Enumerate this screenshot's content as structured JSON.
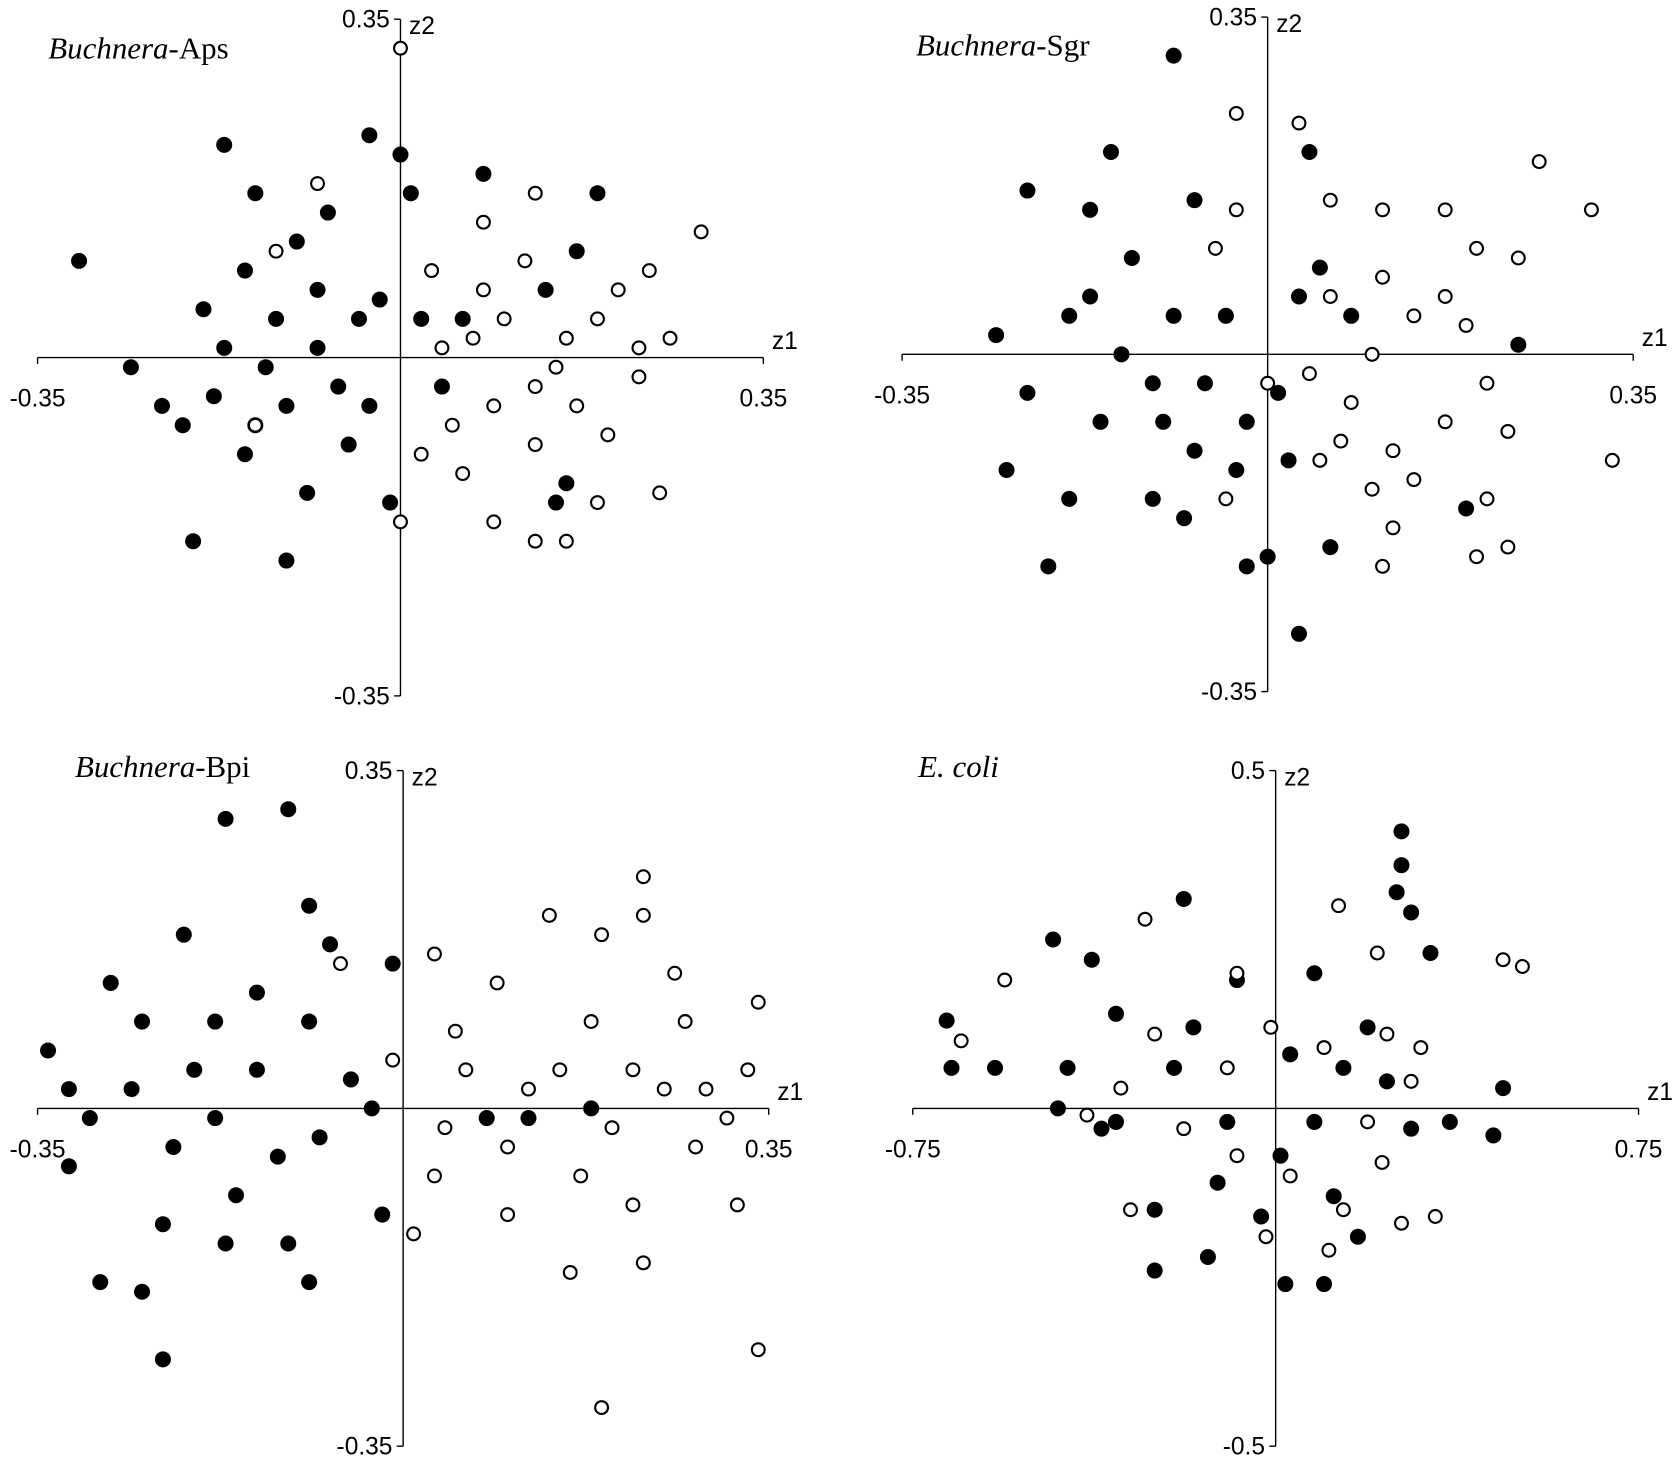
{
  "chart_data": [
    {
      "type": "scatter",
      "title": "Buchnera-Aps",
      "xlabel": "z1",
      "ylabel": "z2",
      "xlim": [
        -0.35,
        0.35
      ],
      "ylim": [
        -0.35,
        0.35
      ],
      "xticks": [
        -0.35,
        0.35
      ],
      "yticks": [
        -0.35,
        0.35
      ],
      "series": [
        {
          "color": "#000000",
          "marker": "filled",
          "x": [
            -0.31,
            -0.26,
            -0.23,
            -0.2,
            -0.17,
            -0.11,
            -0.03,
            0,
            0.08,
            0.19,
            0.17,
            0.16,
            0.15,
            -0.01,
            -0.09,
            -0.14,
            -0.18,
            -0.19,
            -0.15,
            -0.12,
            -0.08,
            -0.06,
            -0.04,
            -0.02,
            -0.1,
            -0.07,
            -0.14,
            -0.05,
            0.02,
            0.04,
            -0.03,
            -0.11,
            -0.17,
            -0.21,
            0.14,
            0.06,
            -0.08,
            -0.13,
            0.01,
            -0.15
          ],
          "values": [
            0.1,
            -0.01,
            -0.05,
            -0.19,
            0.22,
            -0.21,
            0.23,
            0.21,
            0.19,
            0.17,
            0.11,
            -0.13,
            -0.15,
            -0.15,
            -0.14,
            -0.07,
            -0.04,
            0.05,
            0.09,
            0.04,
            0.01,
            -0.03,
            0.04,
            0.06,
            0.12,
            0.15,
            0.17,
            -0.09,
            0.04,
            -0.03,
            -0.05,
            -0.05,
            0.01,
            -0.07,
            0.07,
            0.04,
            0.07,
            -0.01,
            0.17,
            -0.1
          ]
        },
        {
          "color": "#000000",
          "marker": "open",
          "x": [
            0,
            0.13,
            0.29,
            0.24,
            0.26,
            0.25,
            0.2,
            0.16,
            0.13,
            0.09,
            0,
            0.23,
            0.19,
            0.15,
            0.12,
            0.08,
            0.09,
            0.05,
            0.07,
            0.13,
            0.17,
            0.21,
            0.03,
            0.04,
            0.02,
            -0.08,
            -0.12,
            -0.14,
            0.1,
            0.16,
            0.23,
            0.08,
            0.13,
            0.06,
            0.19
          ],
          "values": [
            0.32,
            0.17,
            0.13,
            0.09,
            0.02,
            -0.14,
            -0.08,
            -0.19,
            -0.19,
            -0.17,
            -0.17,
            -0.02,
            0.04,
            -0.01,
            0.1,
            0.14,
            -0.05,
            -0.07,
            0.02,
            -0.09,
            -0.05,
            0.07,
            0.09,
            0.01,
            -0.1,
            0.18,
            0.11,
            -0.07,
            0.04,
            0.02,
            0.01,
            0.07,
            -0.03,
            -0.12,
            -0.15
          ]
        }
      ]
    },
    {
      "type": "scatter",
      "title": "Buchnera-Sgr",
      "xlabel": "z1",
      "ylabel": "z2",
      "xlim": [
        -0.35,
        0.35
      ],
      "ylim": [
        -0.35,
        0.35
      ],
      "xticks": [
        -0.35,
        0.35
      ],
      "yticks": [
        -0.35,
        0.35
      ],
      "series": [
        {
          "color": "#000000",
          "marker": "filled",
          "x": [
            -0.09,
            -0.23,
            -0.15,
            -0.26,
            -0.25,
            -0.21,
            0.03,
            -0.02,
            0,
            0.06,
            0.19,
            0.24,
            0.04,
            -0.08,
            -0.11,
            -0.19,
            -0.23,
            -0.17,
            -0.13,
            -0.09,
            -0.06,
            -0.11,
            -0.14,
            -0.04,
            -0.02,
            -0.07,
            -0.16,
            0.01,
            0.05,
            0.08,
            -0.17,
            -0.07,
            -0.03,
            0.02,
            -0.19,
            -0.1,
            0.03
          ],
          "values": [
            0.31,
            0.17,
            0.21,
            0.02,
            -0.12,
            -0.22,
            -0.29,
            -0.22,
            -0.21,
            -0.2,
            -0.16,
            0.01,
            0.21,
            -0.17,
            -0.15,
            -0.15,
            -0.04,
            0.06,
            0.1,
            0.04,
            -0.03,
            -0.03,
            0,
            0.04,
            -0.07,
            -0.1,
            -0.07,
            -0.04,
            0.09,
            0.04,
            0.15,
            0.16,
            -0.12,
            -0.11,
            0.04,
            -0.07,
            0.06
          ]
        },
        {
          "color": "#000000",
          "marker": "open",
          "x": [
            -0.03,
            0.03,
            0.26,
            0.31,
            0.33,
            0.23,
            0.2,
            0.11,
            0.12,
            0.21,
            0.24,
            0.2,
            0.17,
            0.11,
            0.06,
            -0.03,
            0.14,
            0.17,
            0.1,
            0.08,
            0.12,
            0.14,
            0.07,
            0.04,
            0.21,
            0.17,
            0.23,
            0.06,
            0.11,
            0.19,
            0,
            -0.04,
            -0.05,
            0.1,
            0.05
          ],
          "values": [
            0.25,
            0.24,
            0.2,
            0.15,
            -0.11,
            -0.2,
            -0.21,
            -0.22,
            -0.18,
            -0.15,
            0.1,
            0.11,
            0.15,
            0.15,
            0.16,
            0.15,
            0.04,
            0.06,
            0,
            -0.05,
            -0.1,
            -0.13,
            -0.09,
            -0.02,
            -0.03,
            -0.07,
            -0.08,
            0.06,
            0.08,
            0.03,
            -0.03,
            -0.15,
            0.11,
            -0.14,
            -0.11
          ]
        }
      ]
    },
    {
      "type": "scatter",
      "title": "Buchnera-Bpi",
      "xlabel": "z1",
      "ylabel": "z2",
      "xlim": [
        -0.35,
        0.35
      ],
      "ylim": [
        -0.35,
        0.35
      ],
      "xticks": [
        -0.35,
        0.35
      ],
      "yticks": [
        -0.35,
        0.35
      ],
      "series": [
        {
          "color": "#000000",
          "marker": "filled",
          "x": [
            -0.11,
            -0.17,
            -0.09,
            -0.23,
            -0.34,
            -0.32,
            -0.29,
            -0.25,
            -0.09,
            -0.02,
            -0.01,
            -0.07,
            -0.21,
            -0.28,
            -0.25,
            -0.2,
            -0.18,
            -0.22,
            -0.16,
            -0.12,
            -0.14,
            -0.09,
            -0.05,
            -0.03,
            -0.08,
            -0.26,
            -0.3,
            -0.23,
            -0.17,
            -0.11,
            -0.14,
            0.08,
            0.12,
            0.18,
            -0.18,
            -0.32
          ],
          "values": [
            0.31,
            0.3,
            0.21,
            -0.26,
            0.06,
            -0.06,
            -0.18,
            -0.19,
            -0.18,
            -0.11,
            0.15,
            0.17,
            0.18,
            0.13,
            0.09,
            0.04,
            -0.01,
            -0.04,
            -0.09,
            -0.05,
            0.04,
            0.09,
            0.03,
            0,
            -0.03,
            0.02,
            -0.01,
            -0.12,
            -0.14,
            -0.14,
            0.12,
            -0.01,
            -0.01,
            0,
            0.09,
            0.02
          ]
        },
        {
          "color": "#000000",
          "marker": "open",
          "x": [
            0.23,
            0.23,
            0.14,
            0.19,
            0.34,
            0.23,
            0.16,
            0.01,
            0.03,
            -0.06,
            0.09,
            0.19,
            0.26,
            0.34,
            0.33,
            0.31,
            0.28,
            0.25,
            0.22,
            0.2,
            0.17,
            0.12,
            0.1,
            0.06,
            0.04,
            0.03,
            0.1,
            0.22,
            0.32,
            0.27,
            0.18,
            0.05,
            0.15,
            0.29,
            -0.01
          ],
          "values": [
            0.24,
            0.2,
            0.2,
            -0.31,
            -0.25,
            -0.16,
            -0.17,
            -0.13,
            0.16,
            0.15,
            0.13,
            0.18,
            0.14,
            0.11,
            0.04,
            -0.01,
            -0.04,
            0.02,
            0.04,
            -0.02,
            -0.07,
            0.02,
            -0.04,
            0.04,
            -0.02,
            -0.07,
            -0.11,
            -0.1,
            -0.1,
            0.09,
            0.09,
            0.08,
            0.04,
            0.02,
            0.05
          ]
        }
      ]
    },
    {
      "type": "scatter",
      "title": "E. coli",
      "xlabel": "z1",
      "ylabel": "z2",
      "xlim": [
        -0.75,
        0.75
      ],
      "ylim": [
        -0.5,
        0.5
      ],
      "xticks": [
        -0.75,
        0.75
      ],
      "yticks": [
        -0.5,
        0.5
      ],
      "series": [
        {
          "color": "#000000",
          "marker": "filled",
          "x": [
            0.26,
            0.26,
            0.25,
            0.28,
            -0.19,
            -0.68,
            -0.67,
            -0.25,
            0.02,
            0.1,
            0.45,
            0.47,
            0.36,
            -0.46,
            -0.38,
            -0.33,
            -0.43,
            -0.33,
            -0.21,
            -0.1,
            0.01,
            0.08,
            0.14,
            0.19,
            0.23,
            0.28,
            0.12,
            -0.03,
            -0.12,
            -0.25,
            -0.36,
            -0.45,
            -0.17,
            -0.08,
            0.08,
            0.32,
            0.17,
            -0.14,
            -0.58,
            0.03
          ],
          "values": [
            0.41,
            0.36,
            0.32,
            0.29,
            0.31,
            0.13,
            0.06,
            -0.24,
            -0.26,
            -0.26,
            -0.04,
            0.03,
            -0.02,
            0.25,
            0.22,
            0.14,
            0.06,
            -0.02,
            0.06,
            -0.02,
            -0.07,
            -0.02,
            0.06,
            0.12,
            0.04,
            -0.03,
            -0.13,
            -0.16,
            -0.11,
            -0.15,
            -0.03,
            0,
            0.12,
            0.19,
            0.2,
            0.23,
            -0.19,
            -0.22,
            0.06,
            0.08
          ]
        },
        {
          "color": "#000000",
          "marker": "open",
          "x": [
            0.13,
            0.47,
            0.51,
            -0.56,
            -0.65,
            -0.27,
            -0.08,
            0.21,
            0.33,
            0.26,
            0.11,
            -0.02,
            -0.3,
            -0.39,
            -0.25,
            -0.1,
            0.1,
            0.23,
            0.3,
            0.28,
            0.19,
            0.03,
            -0.08,
            -0.19,
            0.14,
            -0.32,
            -0.01,
            0.22
          ],
          "values": [
            0.3,
            0.22,
            0.21,
            0.19,
            0.1,
            0.28,
            0.2,
            0.23,
            -0.16,
            -0.17,
            -0.21,
            -0.19,
            -0.15,
            -0.01,
            0.11,
            0.06,
            0.09,
            0.11,
            0.09,
            0.04,
            -0.02,
            -0.1,
            -0.07,
            -0.03,
            -0.15,
            0.03,
            0.12,
            -0.08
          ]
        }
      ]
    }
  ]
}
